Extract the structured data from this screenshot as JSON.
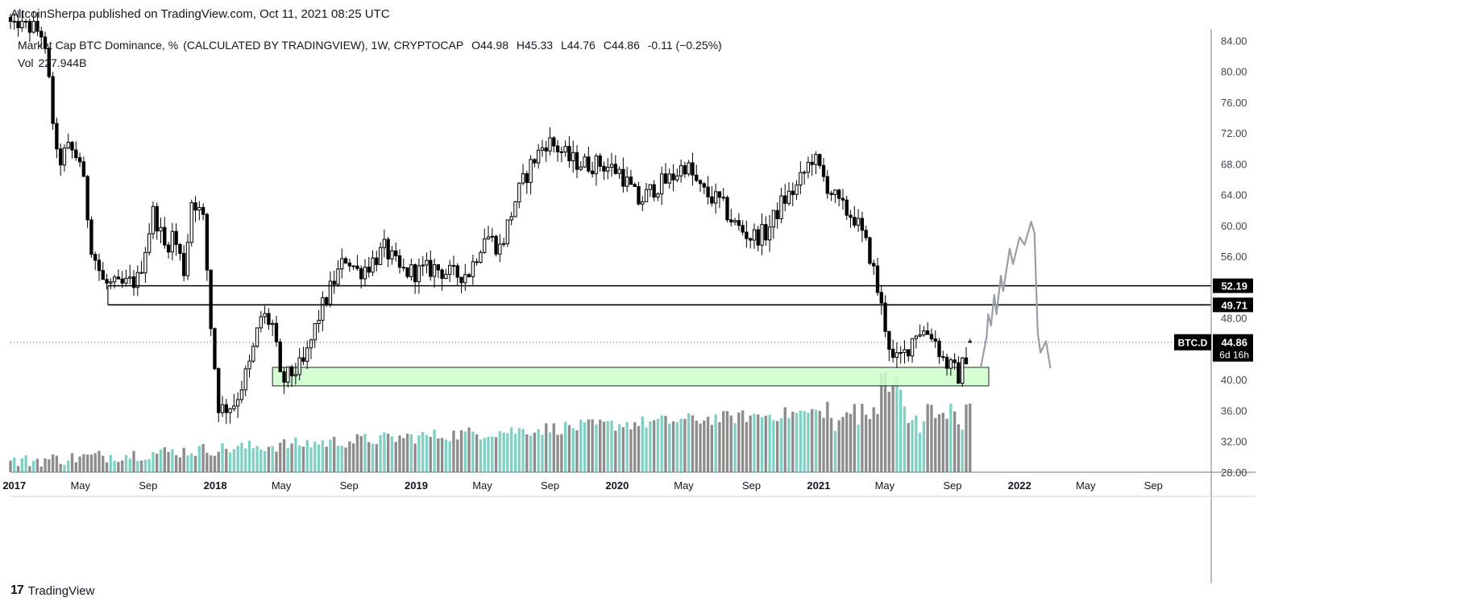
{
  "header": {
    "published_by": "AltcoinSherpa published on TradingView.com, Oct 11, 2021 08:25 UTC"
  },
  "legend": {
    "symbol_title": "Market Cap BTC Dominance, %",
    "source": "(CALCULATED BY TRADINGVIEW), 1W, CRYPTOCAP",
    "open_label": "O",
    "open": "44.98",
    "high_label": "H",
    "high": "45.33",
    "low_label": "L",
    "low": "44.76",
    "close_label": "C",
    "close": "44.86",
    "change": "-0.11 (−0.25%)",
    "vol_label": "Vol",
    "vol": "227.944B"
  },
  "footer": {
    "brand": "TradingView",
    "logo_icon": "tradingview-logo-icon"
  },
  "colors": {
    "up_body": "#ffffff",
    "down_body": "#000000",
    "wick": "#000000",
    "vol_up": "#7fd1c5",
    "vol_down": "#8c8c8c",
    "support_zone_fill": "#ccffcc",
    "support_zone_stroke": "#000000",
    "projection": "#9a9ea8",
    "axis_text": "#434651",
    "badge_bg": "#000000",
    "badge_text": "#ffffff"
  },
  "chart_data": {
    "type": "candlestick",
    "symbol": "BTC.D",
    "timeframe": "1W",
    "y_axis": {
      "ticks": [
        84.0,
        80.0,
        76.0,
        72.0,
        68.0,
        64.0,
        60.0,
        56.0,
        52.0,
        48.0,
        44.0,
        40.0,
        36.0,
        32.0,
        28.0
      ],
      "range": [
        28,
        85.5
      ]
    },
    "x_axis": {
      "ticks": [
        {
          "label": "2017",
          "date": "2017-01-01"
        },
        {
          "label": "May",
          "date": "2017-05-01"
        },
        {
          "label": "Sep",
          "date": "2017-09-01"
        },
        {
          "label": "2018",
          "date": "2018-01-01"
        },
        {
          "label": "May",
          "date": "2018-05-01"
        },
        {
          "label": "Sep",
          "date": "2018-09-01"
        },
        {
          "label": "2019",
          "date": "2019-01-01"
        },
        {
          "label": "May",
          "date": "2019-05-01"
        },
        {
          "label": "Sep",
          "date": "2019-09-01"
        },
        {
          "label": "2020",
          "date": "2020-01-01"
        },
        {
          "label": "May",
          "date": "2020-05-01"
        },
        {
          "label": "Sep",
          "date": "2020-09-01"
        },
        {
          "label": "2021",
          "date": "2021-01-01"
        },
        {
          "label": "May",
          "date": "2021-05-01"
        },
        {
          "label": "Sep",
          "date": "2021-09-01"
        },
        {
          "label": "2022",
          "date": "2022-01-01"
        },
        {
          "label": "May",
          "date": "2022-05-01"
        },
        {
          "label": "Sep",
          "date": "2022-09-01"
        }
      ],
      "range": [
        "2016-12-25",
        "2022-12-15"
      ]
    },
    "horizontal_levels": [
      {
        "value": 52.19,
        "label": "52.19",
        "from": "2017-06-20"
      },
      {
        "value": 49.71,
        "label": "49.71",
        "from": "2017-06-20"
      }
    ],
    "last_price": {
      "value": 44.86,
      "label": "44.86",
      "symbol_label": "BTC.D",
      "countdown": "6d 16h"
    },
    "support_zone": {
      "from": "2018-04-15",
      "to": "2021-11-06",
      "low": 39.2,
      "high": 41.6
    },
    "projection_path": [
      [
        "2021-10-22",
        41.5
      ],
      [
        "2021-11-02",
        45.5
      ],
      [
        "2021-11-05",
        48.5
      ],
      [
        "2021-11-10",
        47.0
      ],
      [
        "2021-11-16",
        51.0
      ],
      [
        "2021-11-20",
        48.5
      ],
      [
        "2021-11-28",
        53.5
      ],
      [
        "2021-12-02",
        51.5
      ],
      [
        "2021-12-14",
        57.0
      ],
      [
        "2021-12-20",
        55.0
      ],
      [
        "2022-01-01",
        58.5
      ],
      [
        "2022-01-10",
        57.5
      ],
      [
        "2022-01-18",
        59.5
      ],
      [
        "2022-01-22",
        60.5
      ],
      [
        "2022-01-28",
        59.0
      ],
      [
        "2022-02-03",
        46.0
      ],
      [
        "2022-02-08",
        43.5
      ],
      [
        "2022-02-18",
        45.0
      ],
      [
        "2022-02-26",
        41.5
      ]
    ],
    "candles_weekly_close_keypoints": [
      [
        "2016-12-25",
        87.0
      ],
      [
        "2017-02-20",
        85.0
      ],
      [
        "2017-03-06",
        78.0
      ],
      [
        "2017-03-20",
        68.0
      ],
      [
        "2017-04-10",
        70.0
      ],
      [
        "2017-05-01",
        68.5
      ],
      [
        "2017-05-22",
        57.0
      ],
      [
        "2017-06-12",
        52.5
      ],
      [
        "2017-07-10",
        52.0
      ],
      [
        "2017-08-14",
        53.0
      ],
      [
        "2017-09-11",
        62.0
      ],
      [
        "2017-10-02",
        57.0
      ],
      [
        "2017-10-16",
        59.0
      ],
      [
        "2017-11-06",
        54.0
      ],
      [
        "2017-11-20",
        64.0
      ],
      [
        "2017-12-11",
        60.5
      ],
      [
        "2017-12-25",
        46.0
      ],
      [
        "2018-01-08",
        36.0
      ],
      [
        "2018-01-22",
        36.5
      ],
      [
        "2018-02-05",
        37.0
      ],
      [
        "2018-03-05",
        42.0
      ],
      [
        "2018-03-26",
        48.5
      ],
      [
        "2018-04-16",
        47.0
      ],
      [
        "2018-04-30",
        39.5
      ],
      [
        "2018-05-14",
        40.5
      ],
      [
        "2018-06-11",
        42.0
      ],
      [
        "2018-07-09",
        48.5
      ],
      [
        "2018-08-06",
        53.0
      ],
      [
        "2018-08-27",
        56.0
      ],
      [
        "2018-09-17",
        54.0
      ],
      [
        "2018-10-08",
        55.0
      ],
      [
        "2018-11-05",
        57.0
      ],
      [
        "2018-12-03",
        54.0
      ],
      [
        "2019-01-07",
        54.0
      ],
      [
        "2019-02-04",
        54.5
      ],
      [
        "2019-03-11",
        53.5
      ],
      [
        "2019-04-08",
        54.0
      ],
      [
        "2019-05-06",
        59.0
      ],
      [
        "2019-06-03",
        57.0
      ],
      [
        "2019-07-01",
        63.5
      ],
      [
        "2019-07-29",
        68.0
      ],
      [
        "2019-08-26",
        71.0
      ],
      [
        "2019-09-16",
        70.0
      ],
      [
        "2019-10-07",
        68.5
      ],
      [
        "2019-11-04",
        68.0
      ],
      [
        "2019-12-02",
        68.0
      ],
      [
        "2020-01-06",
        67.0
      ],
      [
        "2020-02-10",
        63.0
      ],
      [
        "2020-03-09",
        65.0
      ],
      [
        "2020-04-06",
        66.0
      ],
      [
        "2020-05-04",
        68.0
      ],
      [
        "2020-06-01",
        64.5
      ],
      [
        "2020-07-06",
        63.0
      ],
      [
        "2020-08-03",
        60.0
      ],
      [
        "2020-08-31",
        58.5
      ],
      [
        "2020-09-28",
        59.0
      ],
      [
        "2020-10-26",
        63.0
      ],
      [
        "2020-11-23",
        65.0
      ],
      [
        "2020-12-21",
        69.0
      ],
      [
        "2021-01-11",
        66.0
      ],
      [
        "2021-02-08",
        62.5
      ],
      [
        "2021-03-08",
        61.0
      ],
      [
        "2021-04-05",
        56.0
      ],
      [
        "2021-04-26",
        49.0
      ],
      [
        "2021-05-17",
        42.0
      ],
      [
        "2021-06-07",
        43.5
      ],
      [
        "2021-06-28",
        46.5
      ],
      [
        "2021-07-26",
        46.0
      ],
      [
        "2021-08-16",
        42.5
      ],
      [
        "2021-09-13",
        40.5
      ],
      [
        "2021-10-04",
        44.86
      ]
    ]
  }
}
